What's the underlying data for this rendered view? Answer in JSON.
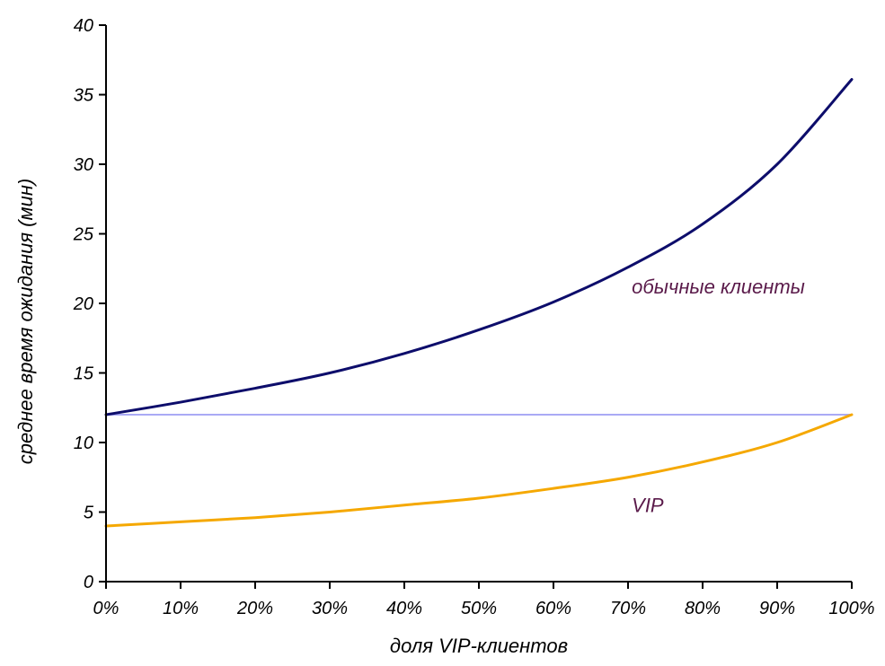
{
  "chart_data": {
    "type": "line",
    "title": "",
    "xlabel": "доля VIP-клиентов",
    "ylabel": "среднее время ожидания (мин)",
    "xlim": [
      0,
      1
    ],
    "ylim": [
      0,
      40
    ],
    "x_ticks": [
      0,
      0.1,
      0.2,
      0.3,
      0.4,
      0.5,
      0.6,
      0.7,
      0.8,
      0.9,
      1.0
    ],
    "x_tick_labels": [
      "0%",
      "10%",
      "20%",
      "30%",
      "40%",
      "50%",
      "60%",
      "70%",
      "80%",
      "90%",
      "100%"
    ],
    "y_ticks": [
      0,
      5,
      10,
      15,
      20,
      25,
      30,
      35,
      40
    ],
    "y_tick_labels": [
      "0",
      "5",
      "10",
      "15",
      "20",
      "25",
      "30",
      "35",
      "40"
    ],
    "grid": false,
    "legend": "none",
    "x": [
      0,
      0.1,
      0.2,
      0.3,
      0.4,
      0.5,
      0.6,
      0.7,
      0.8,
      0.9,
      1.0
    ],
    "series": [
      {
        "label_text": "обычные клиенты",
        "label_color": "#5a1a4a",
        "color": "#0d0d6b",
        "values": [
          12.0,
          12.9,
          13.9,
          15.0,
          16.4,
          18.1,
          20.1,
          22.6,
          25.7,
          30.0,
          36.1
        ]
      },
      {
        "label_text": "",
        "color": "#aaaaf5",
        "values": [
          12.0,
          12.0,
          12.0,
          12.0,
          12.0,
          12.0,
          12.0,
          12.0,
          12.0,
          12.0,
          12.0
        ]
      },
      {
        "label_text": "VIP",
        "label_color": "#5a1a4a",
        "color": "#f5a800",
        "values": [
          4.0,
          4.3,
          4.6,
          5.0,
          5.5,
          6.0,
          6.7,
          7.5,
          8.6,
          10.0,
          12.0
        ]
      }
    ]
  }
}
